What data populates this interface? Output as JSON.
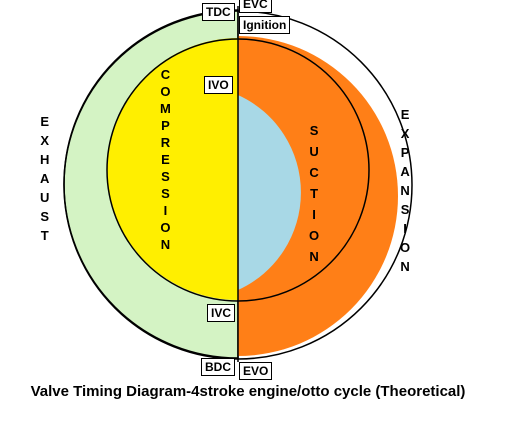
{
  "diagram": {
    "caption": "Valve Timing Diagram-4stroke engine/otto cycle (Theoretical)",
    "points": {
      "tdc": "TDC",
      "evc": "EVC",
      "ignition": "Ignition",
      "ivo": "IVO",
      "ivc": "IVC",
      "bdc": "BDC",
      "evo": "EVO"
    },
    "strokes": {
      "exhaust": "EXHAUST",
      "compression": "COMPRESSION",
      "suction": "SUCTION",
      "expansion": "EXPANSION"
    },
    "colors": {
      "exhaust": "#d4f3c4",
      "compression": "#ffef00",
      "suction": "#a8d8e6",
      "expansion": "#ff7f17",
      "outline": "#000000",
      "background": "#ffffff"
    }
  }
}
